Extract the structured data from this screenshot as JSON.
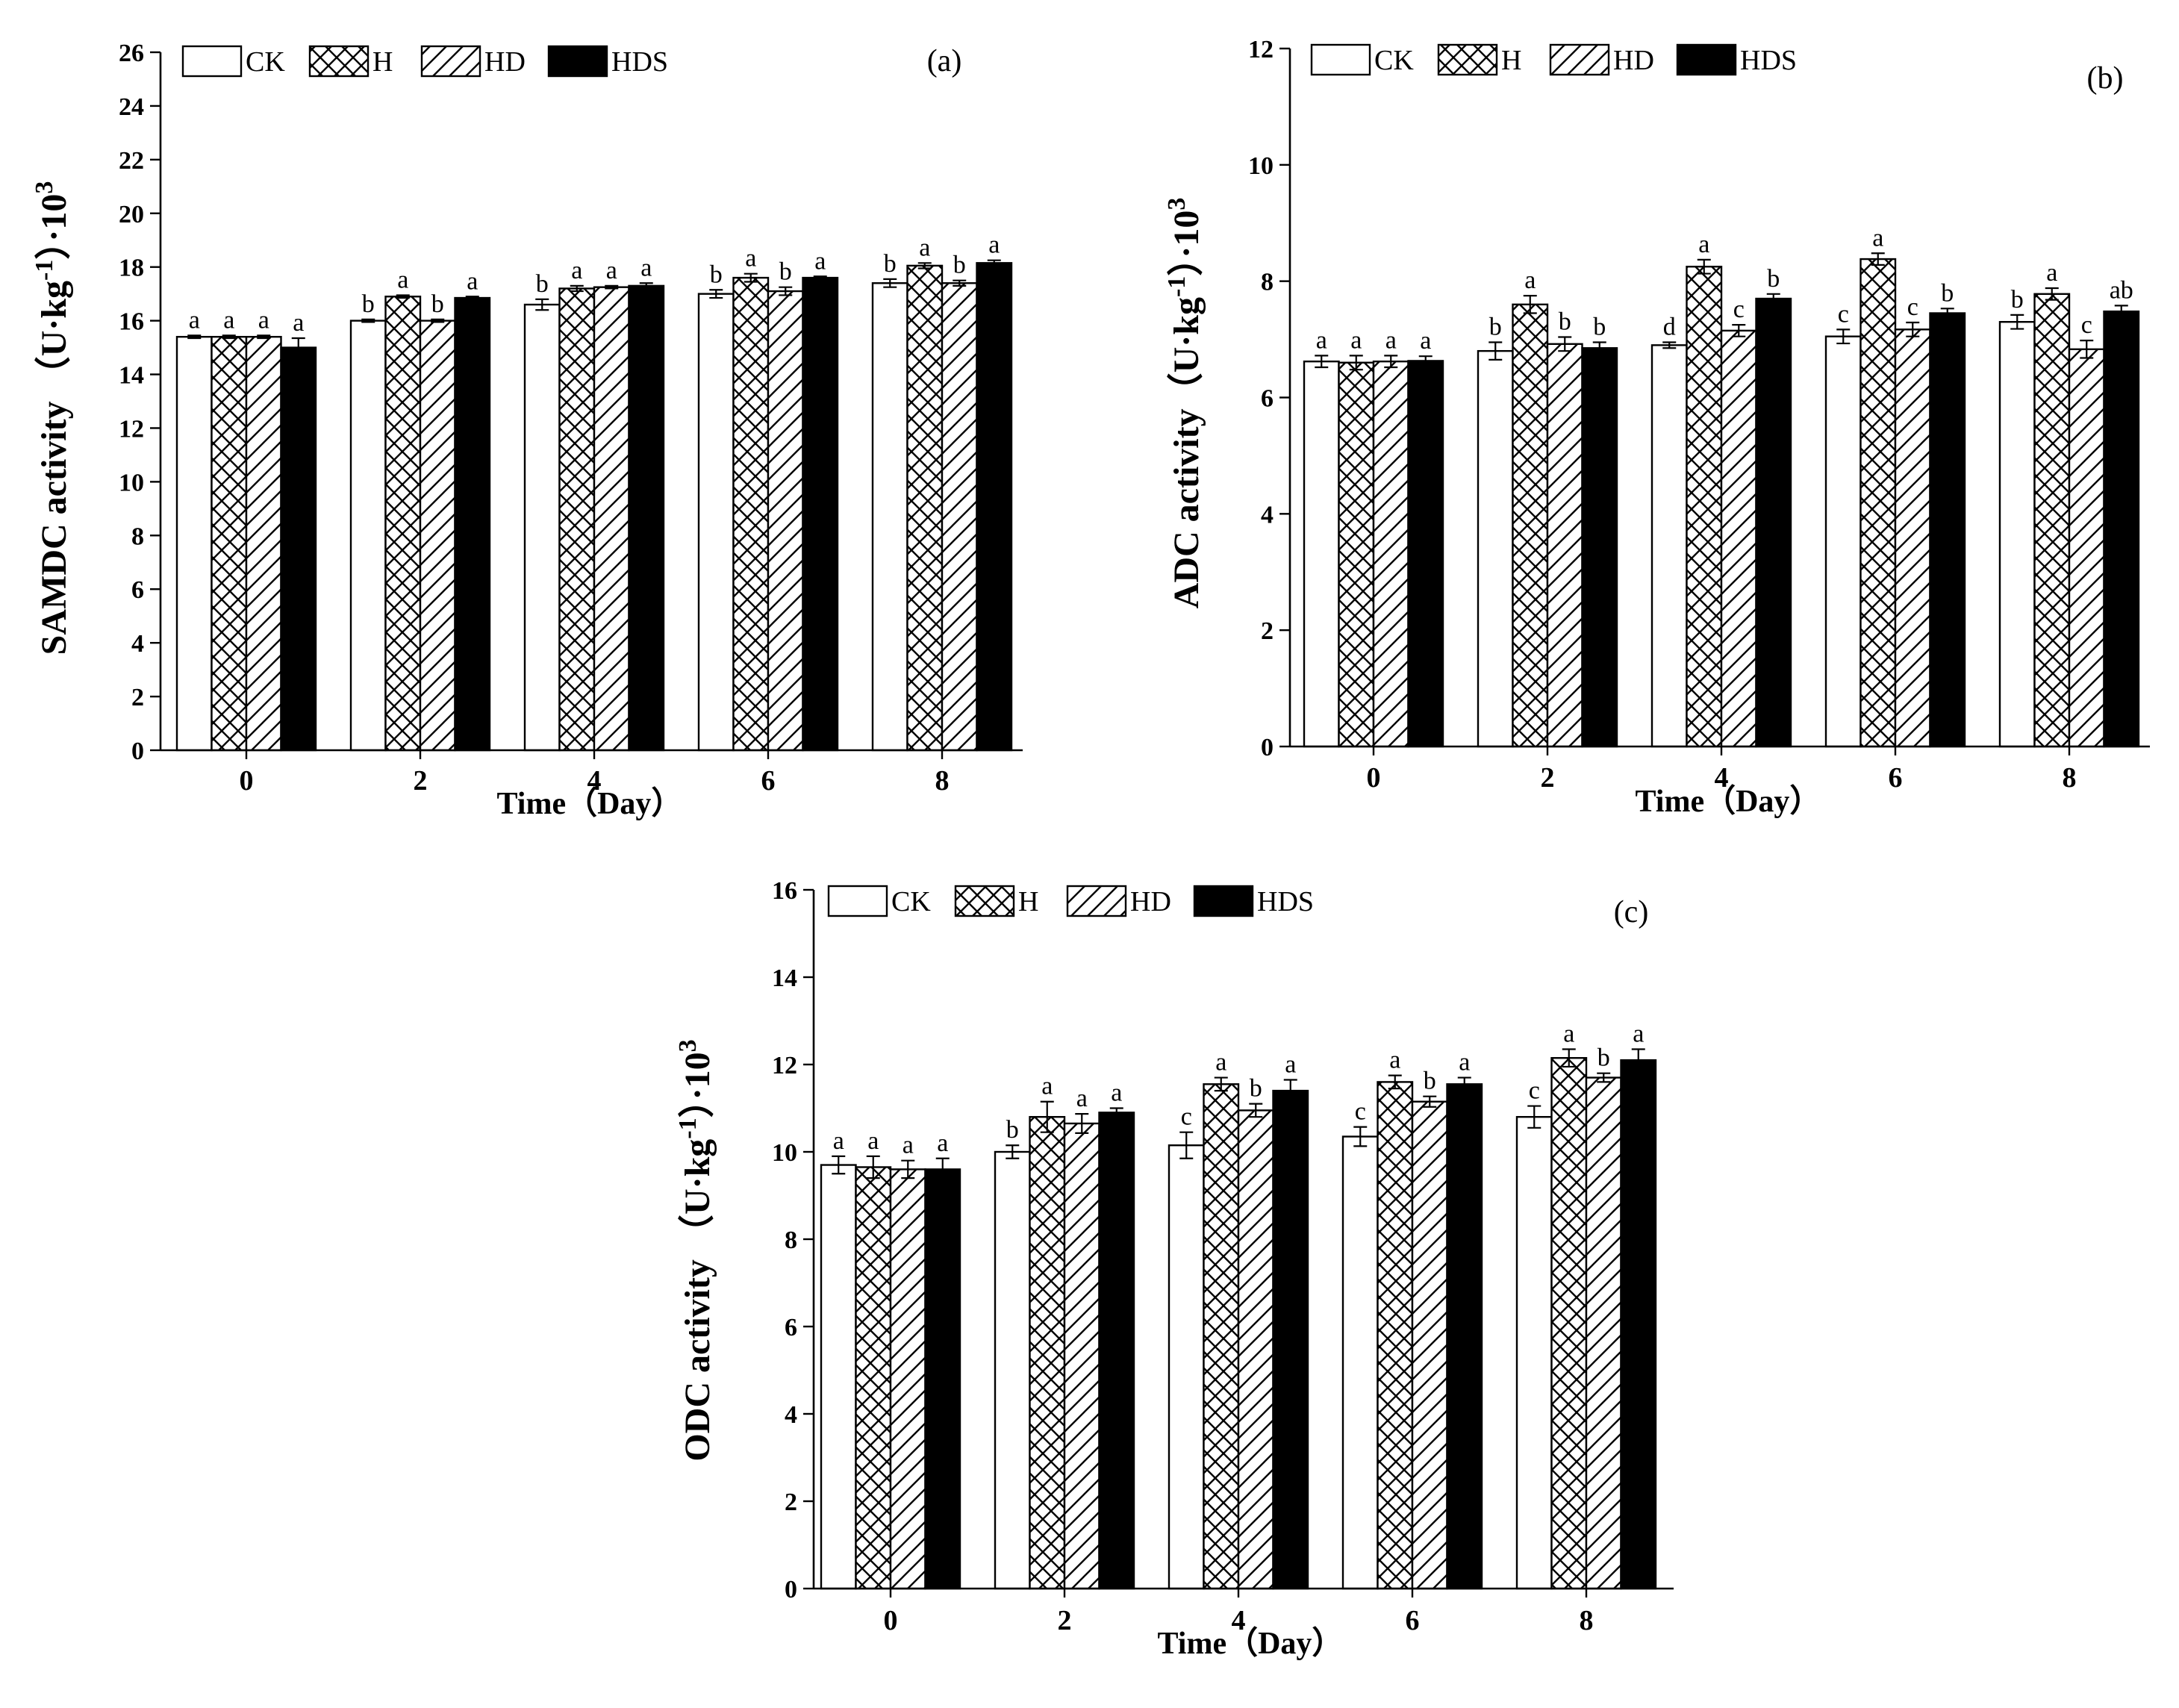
{
  "chart_data": [
    {
      "type": "bar",
      "panel_label": "(a)",
      "categories": [
        "0",
        "2",
        "4",
        "6",
        "8"
      ],
      "xlabel": "Time（Day）",
      "ylabel": "SAMDC activity （U·kg",
      "ylabel_exp": "-1",
      "ylabel_tail": "）·10",
      "ylabel_exp2": "3",
      "ylim": [
        0,
        26
      ],
      "yticks": [
        0,
        2,
        4,
        6,
        8,
        10,
        12,
        14,
        16,
        18,
        20,
        22,
        24,
        26
      ],
      "legend": [
        "CK",
        "H",
        "HD",
        "HDS"
      ],
      "legend_position": "top-left",
      "grid": false,
      "series": [
        {
          "name": "CK",
          "values": [
            15.4,
            16.0,
            16.6,
            17.0,
            17.4
          ],
          "errors": [
            0.05,
            0.05,
            0.2,
            0.15,
            0.15
          ],
          "letters": [
            "a",
            "b",
            "b",
            "b",
            "b"
          ]
        },
        {
          "name": "H",
          "values": [
            15.4,
            16.9,
            17.2,
            17.6,
            18.05
          ],
          "errors": [
            0.05,
            0.05,
            0.1,
            0.15,
            0.1
          ],
          "letters": [
            "a",
            "a",
            "a",
            "a",
            "a"
          ]
        },
        {
          "name": "HD",
          "values": [
            15.4,
            16.0,
            17.25,
            17.1,
            17.4
          ],
          "errors": [
            0.05,
            0.05,
            0.05,
            0.15,
            0.1
          ],
          "letters": [
            "a",
            "b",
            "a",
            "b",
            "b"
          ]
        },
        {
          "name": "HDS",
          "values": [
            15.0,
            16.85,
            17.3,
            17.6,
            18.15
          ],
          "errors": [
            0.35,
            0.05,
            0.1,
            0.05,
            0.1
          ],
          "letters": [
            "a",
            "a",
            "a",
            "a",
            "a"
          ]
        }
      ]
    },
    {
      "type": "bar",
      "panel_label": "(b)",
      "categories": [
        "0",
        "2",
        "4",
        "6",
        "8"
      ],
      "xlabel": "Time（Day）",
      "ylabel": "ADC activity（U·kg",
      "ylabel_exp": "-1",
      "ylabel_tail": "）·10",
      "ylabel_exp2": "3",
      "ylim": [
        0,
        12
      ],
      "yticks": [
        0,
        2,
        4,
        6,
        8,
        10,
        12
      ],
      "legend": [
        "CK",
        "H",
        "HD",
        "HDS"
      ],
      "legend_position": "top-left",
      "grid": false,
      "series": [
        {
          "name": "CK",
          "values": [
            6.62,
            6.8,
            6.9,
            7.05,
            7.3
          ],
          "errors": [
            0.1,
            0.15,
            0.05,
            0.12,
            0.12
          ],
          "letters": [
            "a",
            "b",
            "d",
            "c",
            "b"
          ]
        },
        {
          "name": "H",
          "values": [
            6.6,
            7.6,
            8.25,
            8.38,
            7.78
          ],
          "errors": [
            0.12,
            0.15,
            0.12,
            0.1,
            0.1
          ],
          "letters": [
            "a",
            "a",
            "a",
            "a",
            "a"
          ]
        },
        {
          "name": "HD",
          "values": [
            6.62,
            6.92,
            7.15,
            7.17,
            6.83
          ],
          "errors": [
            0.1,
            0.12,
            0.1,
            0.12,
            0.15
          ],
          "letters": [
            "a",
            "b",
            "c",
            "c",
            "c"
          ]
        },
        {
          "name": "HDS",
          "values": [
            6.63,
            6.85,
            7.7,
            7.45,
            7.48
          ],
          "errors": [
            0.08,
            0.1,
            0.08,
            0.08,
            0.1
          ],
          "letters": [
            "a",
            "b",
            "b",
            "b",
            "ab"
          ]
        }
      ]
    },
    {
      "type": "bar",
      "panel_label": "(c)",
      "categories": [
        "0",
        "2",
        "4",
        "6",
        "8"
      ],
      "xlabel": "Time（Day）",
      "ylabel": "ODC activity （U·kg",
      "ylabel_exp": "-1",
      "ylabel_tail": "）·10",
      "ylabel_exp2": "3",
      "ylim": [
        0,
        16
      ],
      "yticks": [
        0,
        2,
        4,
        6,
        8,
        10,
        12,
        14,
        16
      ],
      "legend": [
        "CK",
        "H",
        "HD",
        "HDS"
      ],
      "legend_position": "top-left",
      "grid": false,
      "series": [
        {
          "name": "CK",
          "values": [
            9.7,
            10.0,
            10.15,
            10.35,
            10.8
          ],
          "errors": [
            0.2,
            0.15,
            0.3,
            0.22,
            0.25
          ],
          "letters": [
            "a",
            "b",
            "c",
            "c",
            "c"
          ]
        },
        {
          "name": "H",
          "values": [
            9.65,
            10.8,
            11.55,
            11.6,
            12.15
          ],
          "errors": [
            0.25,
            0.35,
            0.15,
            0.15,
            0.2
          ],
          "letters": [
            "a",
            "a",
            "a",
            "a",
            "a"
          ]
        },
        {
          "name": "HD",
          "values": [
            9.6,
            10.65,
            10.95,
            11.15,
            11.7
          ],
          "errors": [
            0.2,
            0.22,
            0.15,
            0.12,
            0.1
          ],
          "letters": [
            "a",
            "a",
            "b",
            "b",
            "b"
          ]
        },
        {
          "name": "HDS",
          "values": [
            9.6,
            10.9,
            11.4,
            11.55,
            12.1
          ],
          "errors": [
            0.25,
            0.1,
            0.25,
            0.15,
            0.25
          ],
          "letters": [
            "a",
            "a",
            "a",
            "a",
            "a"
          ]
        }
      ]
    }
  ]
}
